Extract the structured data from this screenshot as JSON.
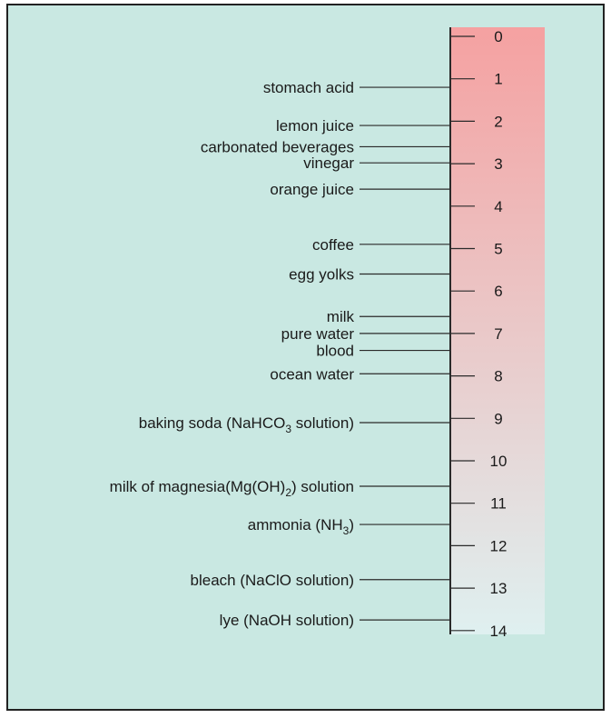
{
  "colors": {
    "panel_background": "#c9e8e2",
    "scale_acid_end": "#f5a1a1",
    "scale_base_end": "#dff0f0",
    "line_color": "#2a2a2a"
  },
  "scale": {
    "min": 0,
    "max": 14,
    "tick_labels": [
      "0",
      "1",
      "2",
      "3",
      "4",
      "5",
      "6",
      "7",
      "8",
      "9",
      "10",
      "11",
      "12",
      "13",
      "14"
    ]
  },
  "substances": [
    {
      "id": "stomach-acid",
      "label": "stomach acid",
      "ph": 1.2
    },
    {
      "id": "lemon-juice",
      "label": "lemon juice",
      "ph": 2.1
    },
    {
      "id": "carbonated-beverages",
      "label": "carbonated beverages",
      "ph": 2.6
    },
    {
      "id": "vinegar",
      "label": "vinegar",
      "ph": 2.98
    },
    {
      "id": "orange-juice",
      "label": "orange juice",
      "ph": 3.6
    },
    {
      "id": "coffee",
      "label": "coffee",
      "ph": 4.9
    },
    {
      "id": "egg-yolks",
      "label": "egg yolks",
      "ph": 5.6
    },
    {
      "id": "milk",
      "label": "milk",
      "ph": 6.6
    },
    {
      "id": "pure-water",
      "label": "pure water",
      "ph": 7.0
    },
    {
      "id": "blood",
      "label": "blood",
      "ph": 7.4
    },
    {
      "id": "ocean-water",
      "label": "ocean water",
      "ph": 7.95
    },
    {
      "id": "baking-soda",
      "label": "baking soda (NaHCO",
      "subscript": "3",
      "suffix": " solution)",
      "ph": 9.1
    },
    {
      "id": "milk-of-magnesia",
      "label": "milk of magnesia(Mg(OH)",
      "subscript": "2",
      "suffix": ") solution",
      "ph": 10.6
    },
    {
      "id": "ammonia",
      "label": "ammonia (NH",
      "subscript": "3",
      "suffix": ")",
      "ph": 11.5
    },
    {
      "id": "bleach",
      "label": "bleach (NaClO solution)",
      "ph": 12.8
    },
    {
      "id": "lye",
      "label": "lye (NaOH solution)",
      "ph": 13.75
    }
  ]
}
